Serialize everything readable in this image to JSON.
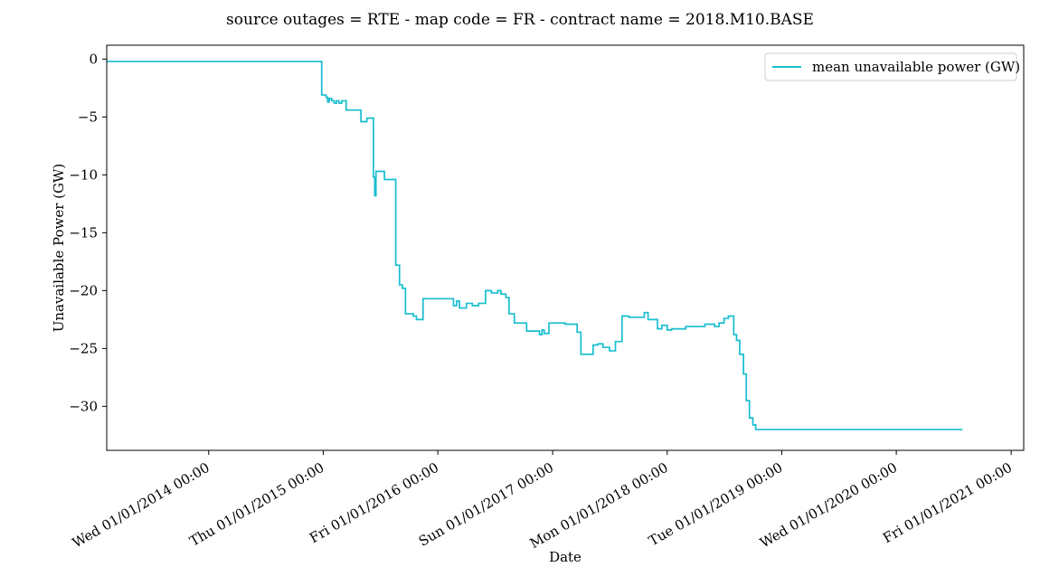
{
  "chart_data": {
    "type": "line",
    "title": "source outages = RTE - map code = FR - contract name = 2018.M10.BASE",
    "xlabel": "Date",
    "ylabel": "Unavailable Power (GW)",
    "xlim": [
      "2013-02-10",
      "2021-02-10"
    ],
    "ylim": [
      -33.8,
      1.2
    ],
    "y_ticks": [
      0,
      -5,
      -10,
      -15,
      -20,
      -25,
      -30
    ],
    "y_tick_labels": [
      "0",
      "−5",
      "−10",
      "−15",
      "−20",
      "−25",
      "−30"
    ],
    "x_ticks": [
      "2014-01-01",
      "2015-01-01",
      "2016-01-01",
      "2017-01-01",
      "2018-01-01",
      "2019-01-01",
      "2020-01-01",
      "2021-01-01"
    ],
    "x_tick_labels": [
      "Wed 01/01/2014 00:00",
      "Thu 01/01/2015 00:00",
      "Fri 01/01/2016 00:00",
      "Sun 01/01/2017 00:00",
      "Mon 01/01/2018 00:00",
      "Tue 01/01/2019 00:00",
      "Wed 01/01/2020 00:00",
      "Fri 01/01/2021 00:00"
    ],
    "grid": false,
    "legend_position": "top-right",
    "series": [
      {
        "name": "mean unavailable power (GW)",
        "color": "#17becf",
        "step": "post",
        "x": [
          "2013-02-10",
          "2014-12-20",
          "2014-12-27",
          "2015-01-10",
          "2015-01-15",
          "2015-01-20",
          "2015-01-28",
          "2015-02-05",
          "2015-02-12",
          "2015-02-20",
          "2015-03-01",
          "2015-03-15",
          "2015-04-10",
          "2015-05-01",
          "2015-05-20",
          "2015-06-10",
          "2015-06-14",
          "2015-06-18",
          "2015-06-25",
          "2015-07-15",
          "2015-08-20",
          "2015-09-01",
          "2015-09-10",
          "2015-09-20",
          "2015-10-15",
          "2015-10-25",
          "2015-11-15",
          "2016-01-01",
          "2016-02-20",
          "2016-03-01",
          "2016-03-10",
          "2016-04-01",
          "2016-04-20",
          "2016-05-10",
          "2016-06-01",
          "2016-06-20",
          "2016-07-10",
          "2016-07-20",
          "2016-08-05",
          "2016-08-15",
          "2016-09-01",
          "2016-10-10",
          "2016-11-20",
          "2016-11-28",
          "2016-12-05",
          "2016-12-20",
          "2017-02-10",
          "2017-03-20",
          "2017-04-01",
          "2017-04-20",
          "2017-05-10",
          "2017-05-25",
          "2017-06-10",
          "2017-07-01",
          "2017-07-20",
          "2017-08-10",
          "2017-09-01",
          "2017-09-20",
          "2017-10-20",
          "2017-11-01",
          "2017-12-01",
          "2017-12-15",
          "2018-01-01",
          "2018-01-15",
          "2018-02-01",
          "2018-03-01",
          "2018-05-01",
          "2018-06-01",
          "2018-06-15",
          "2018-07-01",
          "2018-07-15",
          "2018-08-01",
          "2018-08-10",
          "2018-08-20",
          "2018-09-01",
          "2018-09-10",
          "2018-09-20",
          "2018-10-01",
          "2018-10-10",
          "2018-10-20",
          "2018-11-01",
          "2018-11-10",
          "2018-11-20",
          "2020-07-30"
        ],
        "values": [
          -0.2,
          -0.2,
          -3.1,
          -3.3,
          -3.7,
          -3.4,
          -3.6,
          -3.8,
          -3.6,
          -3.8,
          -3.6,
          -4.4,
          -4.4,
          -5.4,
          -5.1,
          -10.2,
          -11.8,
          -9.7,
          -9.7,
          -10.4,
          -17.8,
          -19.5,
          -19.8,
          -22.0,
          -22.2,
          -22.5,
          -20.7,
          -20.7,
          -21.3,
          -20.9,
          -21.5,
          -21.1,
          -21.3,
          -21.1,
          -20.0,
          -20.2,
          -20.0,
          -20.3,
          -20.6,
          -22.0,
          -22.8,
          -23.5,
          -23.8,
          -23.4,
          -23.7,
          -22.8,
          -22.9,
          -23.6,
          -25.5,
          -25.5,
          -24.7,
          -24.6,
          -24.9,
          -25.2,
          -24.4,
          -22.2,
          -22.3,
          -22.3,
          -21.9,
          -22.5,
          -23.3,
          -23.0,
          -23.4,
          -23.3,
          -23.3,
          -23.1,
          -22.9,
          -23.1,
          -22.8,
          -22.4,
          -22.2,
          -23.8,
          -24.3,
          -25.5,
          -27.2,
          -29.5,
          -31.0,
          -31.6,
          -32.0,
          -32.0,
          -32.0,
          -32.0,
          -32.0,
          -32.0
        ]
      }
    ]
  }
}
